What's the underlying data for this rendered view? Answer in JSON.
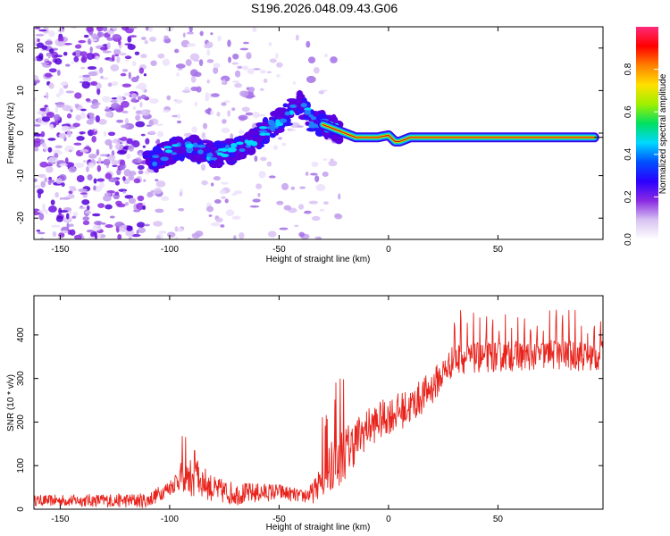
{
  "title": "S196.2026.048.09.43.G06",
  "colors": {
    "snr_line": "#e8231c",
    "track_core": "#d01010",
    "scatter": "#8a2be2",
    "axis": "#000000"
  },
  "chart_data": [
    {
      "type": "heatmap",
      "title": "S196.2026.048.09.43.G06",
      "xlabel": "Height of straight line (km)",
      "ylabel": "Frequency (Hz)",
      "xlim": [
        -162,
        98
      ],
      "ylim": [
        -25,
        25
      ],
      "x_ticks": [
        -150,
        -100,
        -50,
        0,
        50
      ],
      "y_ticks": [
        -20,
        -10,
        0,
        10,
        20
      ],
      "colorbar": {
        "label": "Normalized spectral amplitude",
        "range": [
          0.0,
          1.0
        ],
        "ticks": [
          0.0,
          0.2,
          0.4,
          0.6,
          0.8
        ],
        "tick_labels": [
          "0.0",
          "0.2",
          "0.4",
          "0.6",
          "0.8"
        ],
        "colormap": [
          "#ffffff",
          "#d8c4f2",
          "#8a2be2",
          "#2b00ff",
          "#0050ff",
          "#00d8ff",
          "#00e060",
          "#a0f000",
          "#ffe000",
          "#ff8000",
          "#ff0000",
          "#ff2a7a"
        ]
      },
      "ridge": {
        "x": [
          -108,
          -100,
          -90,
          -80,
          -70,
          -60,
          -50,
          -45,
          -40,
          -35,
          -30,
          -25,
          -20,
          -15,
          -10,
          -5,
          0,
          3,
          5,
          10,
          15,
          20,
          25,
          30,
          50,
          70,
          94
        ],
        "y": [
          -7,
          -4,
          -3.5,
          -5,
          -4,
          -1,
          3,
          5,
          7,
          3,
          2,
          1,
          0,
          -1,
          -1,
          -1,
          -0.5,
          -2,
          -2,
          -1,
          -1,
          -1,
          -1,
          -1,
          -1,
          -1,
          -1
        ]
      }
    },
    {
      "type": "line",
      "xlabel": "Height of straight line (km)",
      "ylabel": "SNR (10 * v/v)",
      "xlim": [
        -162,
        98
      ],
      "ylim": [
        0,
        490
      ],
      "x_ticks": [
        -150,
        -100,
        -50,
        0,
        50
      ],
      "y_ticks": [
        0,
        100,
        200,
        300,
        400
      ],
      "baseline": {
        "x": [
          -162,
          -110,
          -100,
          -95,
          -85,
          -80,
          -70,
          -50,
          -40,
          -35,
          -30,
          -25,
          -20,
          -10,
          0,
          10,
          20,
          30,
          50,
          70,
          98
        ],
        "y": [
          20,
          20,
          50,
          75,
          65,
          45,
          35,
          40,
          30,
          35,
          70,
          100,
          130,
          185,
          215,
          235,
          280,
          345,
          350,
          355,
          350
        ]
      },
      "noise_amplitude": {
        "x": [
          -162,
          -100,
          -90,
          -80,
          -40,
          -32,
          -25,
          -10,
          20,
          30,
          98
        ],
        "y": [
          12,
          18,
          45,
          30,
          15,
          30,
          70,
          45,
          40,
          35,
          35
        ]
      },
      "peaks_start": 30,
      "peaks_spacing": 2.9,
      "peaks_value": 460
    }
  ]
}
